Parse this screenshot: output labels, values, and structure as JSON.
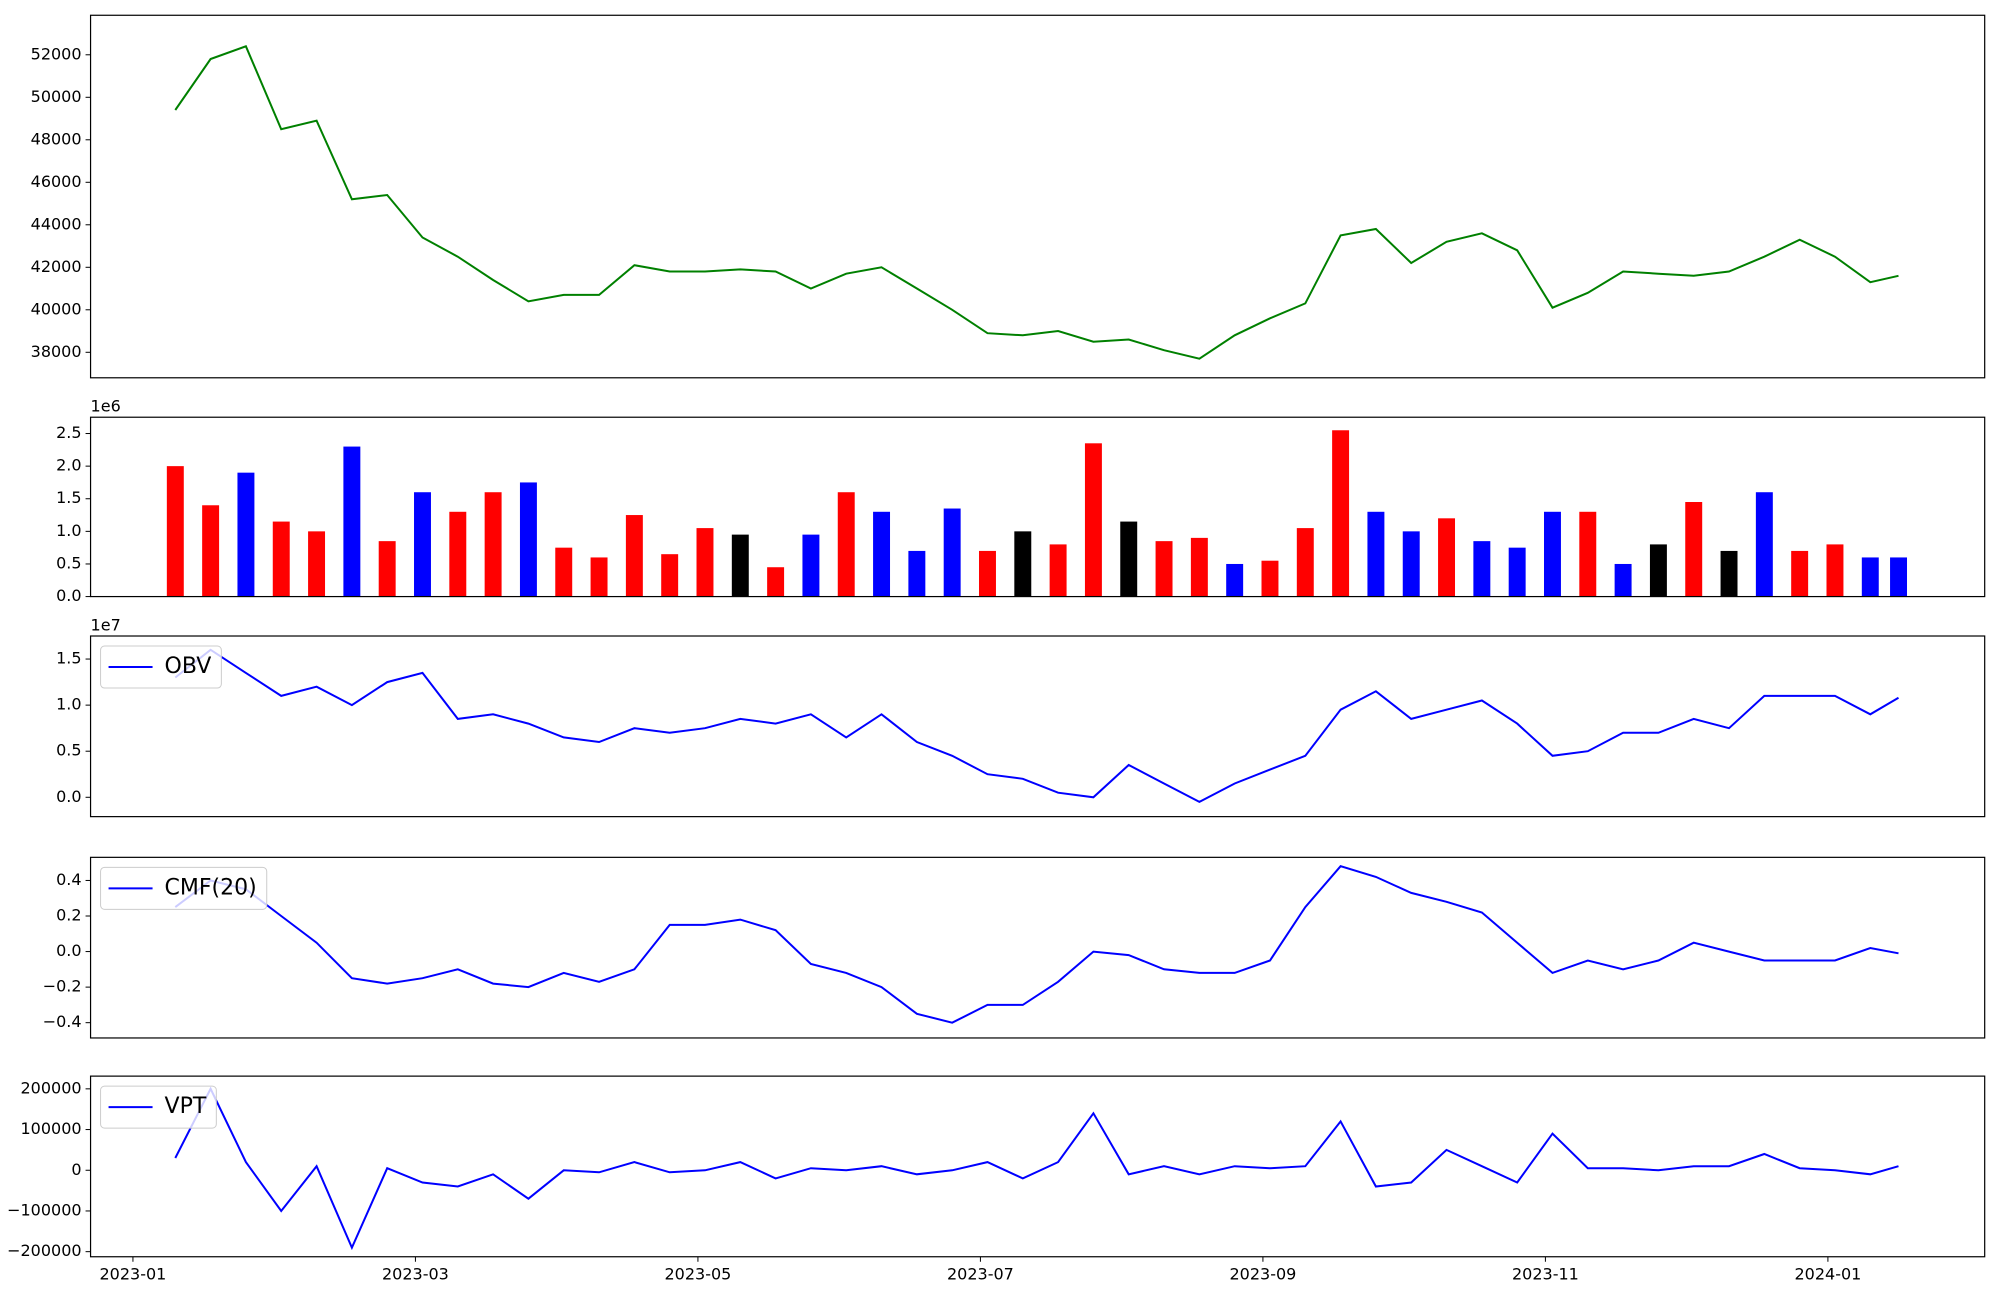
{
  "chart_data": [
    {
      "type": "line",
      "color": "#008000",
      "x": [
        0.3,
        0.55,
        0.8,
        1.05,
        1.3,
        1.55,
        1.8,
        2.05,
        2.3,
        2.55,
        2.8,
        3.05,
        3.3,
        3.55,
        3.8,
        4.05,
        4.3,
        4.55,
        4.8,
        5.05,
        5.3,
        5.55,
        5.8,
        6.05,
        6.3,
        6.55,
        6.8,
        7.05,
        7.3,
        7.55,
        7.8,
        8.05,
        8.3,
        8.55,
        8.8,
        9.05,
        9.3,
        9.55,
        9.8,
        10.05,
        10.3,
        10.55,
        10.8,
        11.05,
        11.3,
        11.55,
        11.8,
        12.05,
        12.3,
        12.5
      ],
      "values": [
        49400,
        51800,
        52400,
        48500,
        48900,
        45200,
        45400,
        43400,
        42500,
        41400,
        40400,
        40700,
        40700,
        42100,
        41800,
        41800,
        41900,
        41800,
        41000,
        41700,
        42000,
        41000,
        40000,
        38900,
        38800,
        39000,
        38500,
        38600,
        38100,
        37700,
        38800,
        39600,
        40300,
        43500,
        43800,
        42200,
        43200,
        43600,
        42800,
        40100,
        40800,
        41800,
        41700,
        41600,
        41800,
        42500,
        43300,
        42500,
        41300,
        41600
      ],
      "xlim": [
        -0.3,
        13.11
      ],
      "ylim": [
        36800,
        53860
      ],
      "yticks": [
        38000,
        40000,
        42000,
        44000,
        46000,
        48000,
        50000,
        52000
      ]
    },
    {
      "type": "bar",
      "offset_label": "1e6",
      "x": [
        0.3,
        0.55,
        0.8,
        1.05,
        1.3,
        1.55,
        1.8,
        2.05,
        2.3,
        2.55,
        2.8,
        3.05,
        3.3,
        3.55,
        3.8,
        4.05,
        4.3,
        4.55,
        4.8,
        5.05,
        5.3,
        5.55,
        5.8,
        6.05,
        6.3,
        6.55,
        6.8,
        7.05,
        7.3,
        7.55,
        7.8,
        8.05,
        8.3,
        8.55,
        8.8,
        9.05,
        9.3,
        9.55,
        9.8,
        10.05,
        10.3,
        10.55,
        10.8,
        11.05,
        11.3,
        11.55,
        11.8,
        12.05,
        12.3,
        12.5
      ],
      "values": [
        2.0,
        1.4,
        1.9,
        1.15,
        1.0,
        2.3,
        0.85,
        1.6,
        1.3,
        1.6,
        1.75,
        0.75,
        0.6,
        1.25,
        0.65,
        1.05,
        0.95,
        0.45,
        0.95,
        1.6,
        1.3,
        0.7,
        1.35,
        0.7,
        1.0,
        0.8,
        2.35,
        1.15,
        0.85,
        0.9,
        0.5,
        0.55,
        1.05,
        2.55,
        1.3,
        1.0,
        1.2,
        0.85,
        0.75,
        1.3,
        1.3,
        0.5,
        0.8,
        1.45,
        0.7,
        1.6,
        0.7,
        0.8,
        0.6,
        0.6
      ],
      "colors": [
        "#ff0000",
        "#ff0000",
        "#0000ff",
        "#ff0000",
        "#ff0000",
        "#0000ff",
        "#ff0000",
        "#0000ff",
        "#ff0000",
        "#ff0000",
        "#0000ff",
        "#ff0000",
        "#ff0000",
        "#ff0000",
        "#ff0000",
        "#ff0000",
        "#000000",
        "#ff0000",
        "#0000ff",
        "#ff0000",
        "#0000ff",
        "#0000ff",
        "#0000ff",
        "#ff0000",
        "#000000",
        "#ff0000",
        "#ff0000",
        "#000000",
        "#ff0000",
        "#ff0000",
        "#0000ff",
        "#ff0000",
        "#ff0000",
        "#ff0000",
        "#0000ff",
        "#0000ff",
        "#ff0000",
        "#0000ff",
        "#0000ff",
        "#0000ff",
        "#ff0000",
        "#0000ff",
        "#000000",
        "#ff0000",
        "#000000",
        "#0000ff",
        "#ff0000",
        "#ff0000",
        "#0000ff",
        "#0000ff"
      ],
      "xlim": [
        -0.3,
        13.11
      ],
      "ylim": [
        0,
        2.75
      ],
      "yticks": [
        {
          "value": 0,
          "label": "0.0"
        },
        0.5,
        {
          "value": 1,
          "label": "1.0"
        },
        1.5,
        {
          "value": 2,
          "label": "2.0"
        },
        2.5
      ]
    },
    {
      "type": "line",
      "offset_label": "1e7",
      "legend": "upper left",
      "x": [
        0.3,
        0.55,
        0.8,
        1.05,
        1.3,
        1.55,
        1.8,
        2.05,
        2.3,
        2.55,
        2.8,
        3.05,
        3.3,
        3.55,
        3.8,
        4.05,
        4.3,
        4.55,
        4.8,
        5.05,
        5.3,
        5.55,
        5.8,
        6.05,
        6.3,
        6.55,
        6.8,
        7.05,
        7.3,
        7.55,
        7.8,
        8.05,
        8.3,
        8.55,
        8.8,
        9.05,
        9.3,
        9.55,
        9.8,
        10.05,
        10.3,
        10.55,
        10.8,
        11.05,
        11.3,
        11.55,
        11.8,
        12.05,
        12.3,
        12.5
      ],
      "series": [
        {
          "name": "OBV",
          "color": "#0000ff",
          "values": [
            1.3,
            1.6,
            1.35,
            1.1,
            1.2,
            1.0,
            1.25,
            1.35,
            0.85,
            0.9,
            0.8,
            0.65,
            0.6,
            0.75,
            0.7,
            0.75,
            0.85,
            0.8,
            0.9,
            0.65,
            0.9,
            0.6,
            0.45,
            0.25,
            0.2,
            0.05,
            0.0,
            0.35,
            0.15,
            -0.05,
            0.15,
            0.3,
            0.45,
            0.95,
            1.15,
            0.85,
            0.95,
            1.05,
            0.8,
            0.45,
            0.5,
            0.7,
            0.7,
            0.85,
            0.75,
            1.1,
            1.1,
            1.1,
            0.9,
            1.08
          ]
        }
      ],
      "xlim": [
        -0.3,
        13.11
      ],
      "ylim": [
        -0.21,
        1.75
      ],
      "yticks": [
        {
          "value": 0,
          "label": "0.0"
        },
        0.5,
        {
          "value": 1,
          "label": "1.0"
        },
        1.5
      ]
    },
    {
      "type": "line",
      "legend": "upper left",
      "x": [
        0.3,
        0.55,
        0.8,
        1.05,
        1.3,
        1.55,
        1.8,
        2.05,
        2.3,
        2.55,
        2.8,
        3.05,
        3.3,
        3.55,
        3.8,
        4.05,
        4.3,
        4.55,
        4.8,
        5.05,
        5.3,
        5.55,
        5.8,
        6.05,
        6.3,
        6.55,
        6.8,
        7.05,
        7.3,
        7.55,
        7.8,
        8.05,
        8.3,
        8.55,
        8.8,
        9.05,
        9.3,
        9.55,
        9.8,
        10.05,
        10.3,
        10.55,
        10.8,
        11.05,
        11.3,
        11.55,
        11.8,
        12.05,
        12.3,
        12.5
      ],
      "series": [
        {
          "name": "CMF(20)",
          "color": "#0000ff",
          "values": [
            0.25,
            0.4,
            0.35,
            0.2,
            0.05,
            -0.15,
            -0.18,
            -0.15,
            -0.1,
            -0.18,
            -0.2,
            -0.12,
            -0.17,
            -0.1,
            0.15,
            0.15,
            0.18,
            0.12,
            -0.07,
            -0.12,
            -0.2,
            -0.35,
            -0.4,
            -0.3,
            -0.3,
            -0.17,
            0.0,
            -0.02,
            -0.1,
            -0.12,
            -0.12,
            -0.05,
            0.25,
            0.48,
            0.42,
            0.33,
            0.28,
            0.22,
            0.05,
            -0.12,
            -0.05,
            -0.1,
            -0.05,
            0.05,
            0.0,
            -0.05,
            -0.05,
            -0.05,
            0.02,
            -0.01
          ]
        }
      ],
      "xlim": [
        -0.3,
        13.11
      ],
      "ylim": [
        -0.486,
        0.53
      ],
      "yticks": [
        {
          "value": -0.4,
          "label": "−0.4"
        },
        {
          "value": -0.2,
          "label": "−0.2"
        },
        {
          "value": 0,
          "label": "0.0"
        },
        0.2,
        0.4
      ]
    },
    {
      "type": "line",
      "legend": "upper left",
      "x": [
        0.3,
        0.55,
        0.8,
        1.05,
        1.3,
        1.55,
        1.8,
        2.05,
        2.3,
        2.55,
        2.8,
        3.05,
        3.3,
        3.55,
        3.8,
        4.05,
        4.3,
        4.55,
        4.8,
        5.05,
        5.3,
        5.55,
        5.8,
        6.05,
        6.3,
        6.55,
        6.8,
        7.05,
        7.3,
        7.55,
        7.8,
        8.05,
        8.3,
        8.55,
        8.8,
        9.05,
        9.3,
        9.55,
        9.8,
        10.05,
        10.3,
        10.55,
        10.8,
        11.05,
        11.3,
        11.55,
        11.8,
        12.05,
        12.3,
        12.5
      ],
      "series": [
        {
          "name": "VPT",
          "color": "#0000ff",
          "values": [
            30000,
            200000,
            20000,
            -100000,
            10000,
            -190000,
            5000,
            -30000,
            -40000,
            -10000,
            -70000,
            0,
            -5000,
            20000,
            -5000,
            0,
            20000,
            -20000,
            5000,
            0,
            10000,
            -10000,
            0,
            20000,
            -20000,
            20000,
            140000,
            -10000,
            10000,
            -10000,
            10000,
            5000,
            10000,
            120000,
            -40000,
            -30000,
            50000,
            10000,
            -30000,
            90000,
            5000,
            5000,
            0,
            10000,
            10000,
            40000,
            5000,
            0,
            -10000,
            10000
          ]
        }
      ],
      "xlim": [
        -0.3,
        13.11
      ],
      "ylim": [
        -212500,
        231250
      ],
      "yticks": [
        {
          "value": -200000,
          "label": "−200000"
        },
        {
          "value": -100000,
          "label": "−100000"
        },
        0,
        100000,
        200000
      ],
      "xticks": [
        {
          "value": 0,
          "label": "2023-01"
        },
        {
          "value": 2,
          "label": "2023-03"
        },
        {
          "value": 4,
          "label": "2023-05"
        },
        {
          "value": 6,
          "label": "2023-07"
        },
        {
          "value": 8,
          "label": "2023-09"
        },
        {
          "value": 10,
          "label": "2023-11"
        },
        {
          "value": 12,
          "label": "2024-01"
        }
      ]
    }
  ]
}
